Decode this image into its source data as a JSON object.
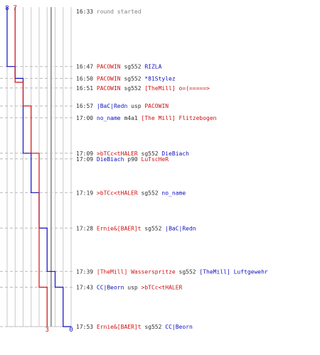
{
  "colors": {
    "blue": "#1010c0",
    "red": "#d01010",
    "grid": "#c8c8c8",
    "axis": "#808080",
    "text": "#303030",
    "muted": "#808080",
    "guide": "#b8b8b8"
  },
  "chart_data": {
    "type": "line",
    "title": "",
    "x_scale": "reversed",
    "series": [
      {
        "name": "",
        "color": "#1010c0",
        "score_start": 8,
        "score_end": 0,
        "points": [
          {
            "time": "16:33",
            "score": 8
          },
          {
            "time": "16:47",
            "score": 7
          },
          {
            "time": "16:50",
            "score": 6
          },
          {
            "time": "17:09",
            "score": 5
          },
          {
            "time": "17:19",
            "score": 4
          },
          {
            "time": "17:28",
            "score": 3
          },
          {
            "time": "17:39",
            "score": 2
          },
          {
            "time": "17:43",
            "score": 1
          },
          {
            "time": "17:53",
            "score": 0
          }
        ]
      },
      {
        "name": "",
        "color": "#d01010",
        "score_start": 7,
        "score_end": 3,
        "points": [
          {
            "time": "16:33",
            "score": 7
          },
          {
            "time": "16:51",
            "score": 6
          },
          {
            "time": "16:57",
            "score": 5
          },
          {
            "time": "17:09",
            "score": 4
          },
          {
            "time": "17:43",
            "score": 3
          }
        ]
      }
    ],
    "x_range": [
      0,
      8
    ],
    "time_range": [
      "16:33",
      "17:53"
    ],
    "grid": true,
    "legend": "none"
  },
  "events": [
    {
      "time": "16:33",
      "text": "round started",
      "kind": "start"
    },
    {
      "time": "16:47",
      "killer": "PACOWIN",
      "killer_team": "red",
      "weapon": "sg552",
      "victim": "RIZLA",
      "victim_team": "blue"
    },
    {
      "time": "16:50",
      "killer": "PACOWIN",
      "killer_team": "red",
      "weapon": "sg552",
      "victim": "*81Stylez",
      "victim_team": "blue"
    },
    {
      "time": "16:51",
      "killer": "PACOWIN",
      "killer_team": "red",
      "weapon": "sg552",
      "victim": "[TheMill] o=(=====>",
      "victim_team": "red"
    },
    {
      "time": "16:57",
      "killer": "|BaC|Redn",
      "killer_team": "blue",
      "weapon": "usp",
      "victim": "PACOWIN",
      "victim_team": "red"
    },
    {
      "time": "17:00",
      "killer": "no_name",
      "killer_team": "blue",
      "weapon": "m4a1",
      "victim": "[The Mill] Flitzebogen",
      "victim_team": "red"
    },
    {
      "time": "17:09",
      "killer": ">bTCc<tHALER",
      "killer_team": "red",
      "weapon": "sg552",
      "victim": "DieBiach",
      "victim_team": "blue"
    },
    {
      "time": "17:09",
      "killer": "DieBiach",
      "killer_team": "blue",
      "weapon": "p90",
      "victim": "LuTscHeR",
      "victim_team": "red"
    },
    {
      "time": "17:19",
      "killer": ">bTCc<tHALER",
      "killer_team": "red",
      "weapon": "sg552",
      "victim": "no_name",
      "victim_team": "blue"
    },
    {
      "time": "17:28",
      "killer": "Ernie&[BAER]t",
      "killer_team": "red",
      "weapon": "sg552",
      "victim": "|BaC|Redn",
      "victim_team": "blue"
    },
    {
      "time": "17:39",
      "killer": "[TheMill] Wassersprit​ze",
      "killer_team": "red",
      "weapon": "sg552",
      "victim": "[TheMill] Luftgewehr",
      "victim_team": "blue"
    },
    {
      "time": "17:43",
      "killer": "CC|Beorn",
      "killer_team": "blue",
      "weapon": "usp",
      "victim": ">bTCc<tHALER",
      "victim_team": "red"
    },
    {
      "time": "17:53",
      "killer": "Ernie&[BAER]t",
      "killer_team": "red",
      "weapon": "sg552",
      "victim": "CC|Beorn",
      "victim_team": "blue"
    }
  ]
}
